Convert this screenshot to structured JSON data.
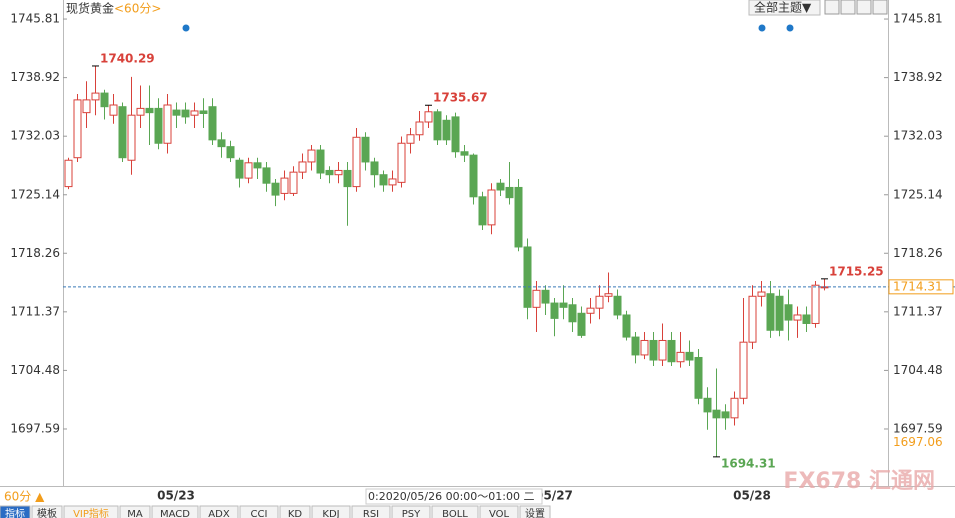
{
  "chart_data": {
    "type": "candlestick",
    "title": "现货黄金",
    "period": "<60分>",
    "categories": [
      null,
      null,
      null,
      null,
      null,
      null,
      null,
      null,
      null,
      null,
      null,
      null,
      "05/23",
      null,
      null,
      null,
      null,
      null,
      null,
      null,
      null,
      null,
      null,
      null,
      null,
      null,
      null,
      null,
      null,
      null,
      null,
      null,
      null,
      null,
      null,
      null,
      null,
      null,
      null,
      null,
      null,
      null,
      null,
      null,
      null,
      null,
      null,
      null,
      null,
      null,
      null,
      null,
      null,
      null,
      "05/27",
      null,
      null,
      null,
      null,
      null,
      null,
      null,
      null,
      null,
      null,
      null,
      null,
      null,
      null,
      null,
      null,
      null,
      null,
      null,
      null,
      null,
      "05/28",
      null,
      null,
      null,
      null,
      null,
      null,
      null,
      null
    ],
    "open": [
      1726.1,
      1729.5,
      1734.8,
      1736.3,
      1737.1,
      1734.5,
      1735.5,
      1729.2,
      1734.5,
      1735.3,
      1735.3,
      1731.2,
      1735.1,
      1735.1,
      1734.5,
      1735.0,
      1735.5,
      1731.6,
      1730.8,
      1729.2,
      1727.1,
      1728.9,
      1728.3,
      1726.5,
      1725.3,
      1725.3,
      1727.8,
      1729.0,
      1730.4,
      1728.0,
      1727.5,
      1728.0,
      1726.1,
      1731.9,
      1729.0,
      1727.5,
      1726.3,
      1726.6,
      1731.2,
      1732.2,
      1733.7,
      1734.9,
      1733.9,
      1734.3,
      1730.2,
      1729.8,
      1724.9,
      1721.6,
      1726.5,
      1726.0,
      1726.0,
      1719.0,
      1711.9,
      1713.9,
      1712.4,
      1712.4,
      1712.2,
      1711.2,
      1711.2,
      1711.8,
      1713.2,
      1713.2,
      1711.0,
      1708.4,
      1706.3,
      1708.0,
      1705.7,
      1708.0,
      1705.5,
      1706.6,
      1706.0,
      1701.2,
      1699.8,
      1699.6,
      1698.9,
      1701.2,
      1707.8,
      1713.2,
      1713.5,
      1713.2,
      1712.2,
      1710.4,
      1711.0,
      1710.0,
      1714.2
    ],
    "high": [
      1729.5,
      1737.0,
      1738.5,
      1740.29,
      1737.5,
      1737.0,
      1736.0,
      1739.0,
      1738.0,
      1738.0,
      1736.5,
      1737.0,
      1736.0,
      1736.0,
      1736.0,
      1736.5,
      1736.5,
      1732.5,
      1731.5,
      1729.5,
      1729.5,
      1729.5,
      1729.0,
      1727.0,
      1728.0,
      1728.5,
      1730.0,
      1731.0,
      1731.0,
      1728.5,
      1729.0,
      1729.0,
      1733.0,
      1732.5,
      1729.5,
      1728.0,
      1728.0,
      1732.0,
      1733.0,
      1735.0,
      1735.67,
      1735.2,
      1734.5,
      1734.8,
      1731.0,
      1730.0,
      1725.5,
      1726.5,
      1727.0,
      1729.0,
      1727.0,
      1720.0,
      1715.0,
      1714.5,
      1713.0,
      1714.5,
      1713.0,
      1712.0,
      1713.0,
      1714.5,
      1716.0,
      1714.0,
      1711.5,
      1709.0,
      1709.0,
      1709.0,
      1710.0,
      1709.0,
      1709.0,
      1708.0,
      1707.0,
      1702.5,
      1704.7,
      1700.5,
      1702.0,
      1713.0,
      1714.5,
      1715.0,
      1715.0,
      1714.0,
      1714.0,
      1712.0,
      1712.0,
      1715.0,
      1715.25
    ],
    "low": [
      1725.8,
      1729.0,
      1733.0,
      1734.5,
      1734.0,
      1733.5,
      1729.0,
      1727.5,
      1733.0,
      1731.0,
      1730.5,
      1730.0,
      1733.0,
      1733.5,
      1733.0,
      1733.0,
      1731.0,
      1729.5,
      1729.0,
      1726.0,
      1726.5,
      1727.0,
      1725.5,
      1723.8,
      1724.5,
      1725.0,
      1727.0,
      1728.0,
      1727.0,
      1726.5,
      1726.5,
      1721.5,
      1725.5,
      1728.0,
      1726.0,
      1725.5,
      1725.5,
      1726.0,
      1730.0,
      1731.5,
      1733.0,
      1731.0,
      1731.0,
      1729.5,
      1729.0,
      1724.0,
      1721.0,
      1720.5,
      1725.0,
      1724.0,
      1718.5,
      1710.5,
      1709.0,
      1711.0,
      1708.5,
      1710.5,
      1709.0,
      1708.3,
      1710.0,
      1710.5,
      1712.5,
      1710.5,
      1708.0,
      1705.3,
      1705.8,
      1705.0,
      1705.0,
      1705.0,
      1704.8,
      1705.0,
      1700.5,
      1697.5,
      1694.31,
      1697.5,
      1698.0,
      1700.5,
      1707.0,
      1712.0,
      1708.3,
      1708.5,
      1708.0,
      1708.3,
      1709.0,
      1709.5,
      1713.9
    ],
    "close": [
      1729.2,
      1736.3,
      1736.3,
      1737.1,
      1735.5,
      1735.7,
      1729.5,
      1734.5,
      1735.3,
      1734.8,
      1731.2,
      1735.7,
      1734.5,
      1734.3,
      1735.0,
      1734.7,
      1731.6,
      1730.8,
      1729.5,
      1727.1,
      1728.9,
      1728.3,
      1726.5,
      1725.1,
      1727.1,
      1727.8,
      1729.0,
      1730.4,
      1727.7,
      1727.5,
      1728.0,
      1726.1,
      1731.9,
      1729.0,
      1727.5,
      1726.3,
      1727.0,
      1731.2,
      1732.2,
      1733.7,
      1734.9,
      1731.6,
      1731.6,
      1730.2,
      1729.8,
      1724.9,
      1721.6,
      1725.7,
      1725.7,
      1724.8,
      1719.0,
      1711.9,
      1713.9,
      1712.4,
      1710.6,
      1711.9,
      1710.2,
      1708.6,
      1711.8,
      1713.2,
      1713.5,
      1711.0,
      1708.4,
      1706.3,
      1708.0,
      1705.7,
      1708.0,
      1705.5,
      1706.6,
      1705.7,
      1701.2,
      1699.6,
      1698.9,
      1698.9,
      1701.2,
      1707.8,
      1713.2,
      1713.7,
      1709.2,
      1709.2,
      1710.4,
      1711.0,
      1710.0,
      1714.5,
      1714.31
    ],
    "up_color": "#d8413a",
    "down_color": "#5aa653",
    "ylim": [
      1691.0,
      1748.05
    ],
    "yticks": [
      1697.59,
      1704.48,
      1711.37,
      1718.26,
      1725.14,
      1732.03,
      1738.92,
      1745.81
    ],
    "last_price": 1714.31,
    "last_color": "#f29d1b",
    "ref_price": 1697.06,
    "crosshair_label": "0:2020/05/26 00:00～01:00 二"
  },
  "toolbar": {
    "theme": "全部主题▼"
  },
  "footer": {
    "period": "60分 ▲",
    "tabs": [
      "指标",
      "模板",
      "VIP指标",
      "MA",
      "MACD",
      "ADX",
      "CCI",
      "KD",
      "KDJ",
      "RSI",
      "PSY",
      "BOLL",
      "VOL",
      "设置"
    ]
  },
  "watermark": "FX678 汇通网"
}
